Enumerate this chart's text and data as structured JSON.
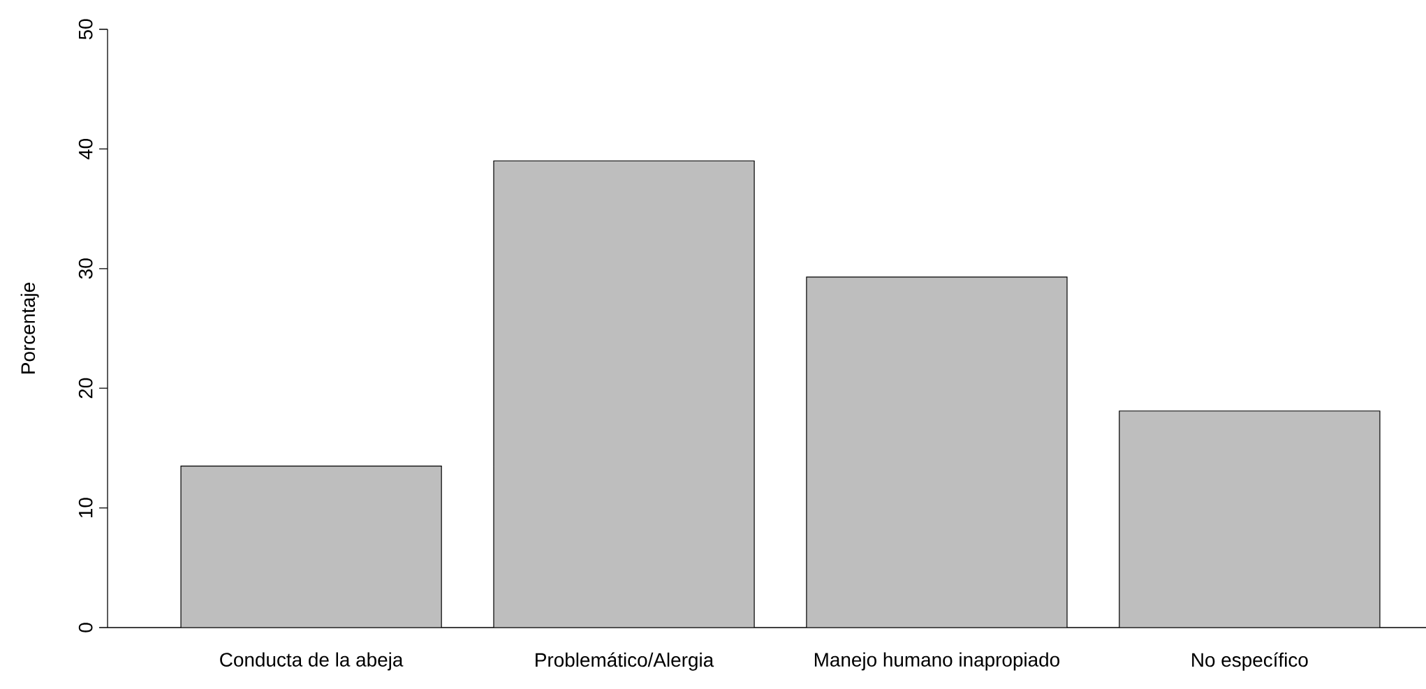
{
  "chart_data": {
    "type": "bar",
    "ylabel": "Porcentaje",
    "categories": [
      "Conducta de la abeja",
      "Problemático/Alergia",
      "Manejo humano inapropiado",
      "No específico"
    ],
    "values": [
      13.5,
      39.0,
      29.3,
      18.1
    ],
    "color": "#bebebe",
    "ylim": [
      0,
      50
    ],
    "yticks": [
      0,
      10,
      20,
      30,
      40,
      50
    ]
  }
}
